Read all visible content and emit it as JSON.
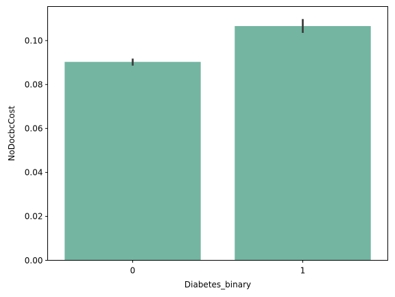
{
  "chart_data": {
    "type": "bar",
    "title": "",
    "xlabel": "Diabetes_binary",
    "ylabel": "NoDocbcCost",
    "categories": [
      "0",
      "1"
    ],
    "values": [
      0.0903,
      0.1066
    ],
    "error_bars": [
      {
        "low": 0.0886,
        "high": 0.0918
      },
      {
        "low": 0.1035,
        "high": 0.1098
      }
    ],
    "ylim": [
      0.0,
      0.1155
    ],
    "yticks": [
      {
        "value": 0.0,
        "label": "0.00"
      },
      {
        "value": 0.02,
        "label": "0.02"
      },
      {
        "value": 0.04,
        "label": "0.04"
      },
      {
        "value": 0.06,
        "label": "0.06"
      },
      {
        "value": 0.08,
        "label": "0.08"
      },
      {
        "value": 0.1,
        "label": "0.10"
      }
    ],
    "grid": false,
    "bar_color": "#73B5A1",
    "error_color": "#3C3C3C"
  }
}
